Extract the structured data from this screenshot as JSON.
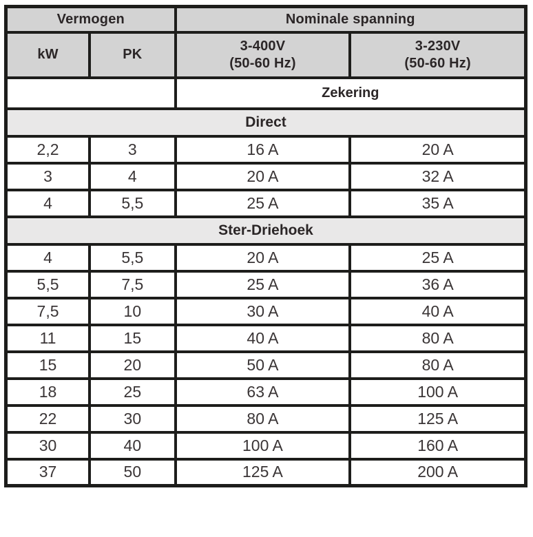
{
  "table": {
    "colors": {
      "header_bg": "#d3d3d3",
      "section_bg": "#e9e8e8",
      "border": "#1d1d1b",
      "text": "#2b2627"
    },
    "header": {
      "vermogen": "Vermogen",
      "nominale_spanning": "Nominale spanning",
      "kw": "kW",
      "pk": "PK",
      "v400_line1": "3-400V",
      "v400_line2": "(50-60 Hz)",
      "v230_line1": "3-230V",
      "v230_line2": "(50-60 Hz)",
      "zekering": "Zekering"
    },
    "sections": [
      {
        "label": "Direct",
        "rows": [
          [
            "2,2",
            "3",
            "16 A",
            "20 A"
          ],
          [
            "3",
            "4",
            "20 A",
            "32 A"
          ],
          [
            "4",
            "5,5",
            "25 A",
            "35 A"
          ]
        ]
      },
      {
        "label": "Ster-Driehoek",
        "rows": [
          [
            "4",
            "5,5",
            "20 A",
            "25 A"
          ],
          [
            "5,5",
            "7,5",
            "25 A",
            "36 A"
          ],
          [
            "7,5",
            "10",
            "30 A",
            "40 A"
          ],
          [
            "11",
            "15",
            "40 A",
            "80 A"
          ],
          [
            "15",
            "20",
            "50 A",
            "80 A"
          ],
          [
            "18",
            "25",
            "63 A",
            "100 A"
          ],
          [
            "22",
            "30",
            "80 A",
            "125 A"
          ],
          [
            "30",
            "40",
            "100 A",
            "160 A"
          ],
          [
            "37",
            "50",
            "125 A",
            "200 A"
          ]
        ]
      }
    ]
  }
}
